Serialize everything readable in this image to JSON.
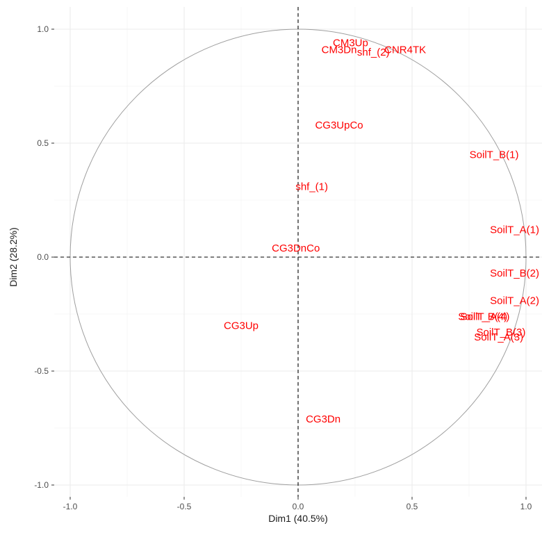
{
  "chart_data": {
    "type": "scatter",
    "xlabel": "Dim1 (40.5%)",
    "ylabel": "Dim2 (28.2%)",
    "xlim": [
      -1.0,
      1.0
    ],
    "ylim": [
      -1.0,
      1.0
    ],
    "x_ticks": [
      {
        "value": -1.0,
        "label": "-1.0"
      },
      {
        "value": -0.5,
        "label": "-0.5"
      },
      {
        "value": 0.0,
        "label": "0.0"
      },
      {
        "value": 0.5,
        "label": "0.5"
      },
      {
        "value": 1.0,
        "label": "1.0"
      }
    ],
    "y_ticks": [
      {
        "value": -1.0,
        "label": "-1.0"
      },
      {
        "value": -0.5,
        "label": "-0.5"
      },
      {
        "value": 0.0,
        "label": "0.0"
      },
      {
        "value": 0.5,
        "label": "0.5"
      },
      {
        "value": 1.0,
        "label": "1.0"
      }
    ],
    "grid": true,
    "unit_circle": true,
    "reference_lines": "dashed lines at x = 0 and y = 0",
    "label_color": "#ff0000",
    "points": [
      {
        "label": "CM3Up",
        "x": 0.23,
        "y": 0.94
      },
      {
        "label": "CM3Dn",
        "x": 0.18,
        "y": 0.91
      },
      {
        "label": "CNR4TK",
        "x": 0.47,
        "y": 0.91
      },
      {
        "label": "shf_(2)",
        "x": 0.33,
        "y": 0.9
      },
      {
        "label": "CG3UpCo",
        "x": 0.18,
        "y": 0.58
      },
      {
        "label": "shf_(1)",
        "x": 0.06,
        "y": 0.31
      },
      {
        "label": "CG3DnCo",
        "x": -0.01,
        "y": 0.04
      },
      {
        "label": "CG3Up",
        "x": -0.25,
        "y": -0.3
      },
      {
        "label": "CG3Dn",
        "x": 0.11,
        "y": -0.71
      },
      {
        "label": "SoilT_B(1)",
        "x": 0.86,
        "y": 0.45
      },
      {
        "label": "SoilT_A(1)",
        "x": 0.95,
        "y": 0.12
      },
      {
        "label": "SoilT_B(2)",
        "x": 0.95,
        "y": -0.07
      },
      {
        "label": "SoilT_A(2)",
        "x": 0.95,
        "y": -0.19
      },
      {
        "label": "SoilT_B(4)",
        "x": 0.81,
        "y": -0.26
      },
      {
        "label": "SoilT_A(4)",
        "x": 0.82,
        "y": -0.26
      },
      {
        "label": "SoilT_B(3)",
        "x": 0.89,
        "y": -0.33
      },
      {
        "label": "SoilT_A(3)",
        "x": 0.88,
        "y": -0.35
      }
    ]
  },
  "colors": {
    "labels": "#ff0000",
    "grid_major": "#ebebeb",
    "grid_minor": "#f5f5f5",
    "circle": "#9e9e9e",
    "ref_lines": "#000000",
    "ticks": "#4d4d4d",
    "axis_title": "#1a1a1a"
  }
}
